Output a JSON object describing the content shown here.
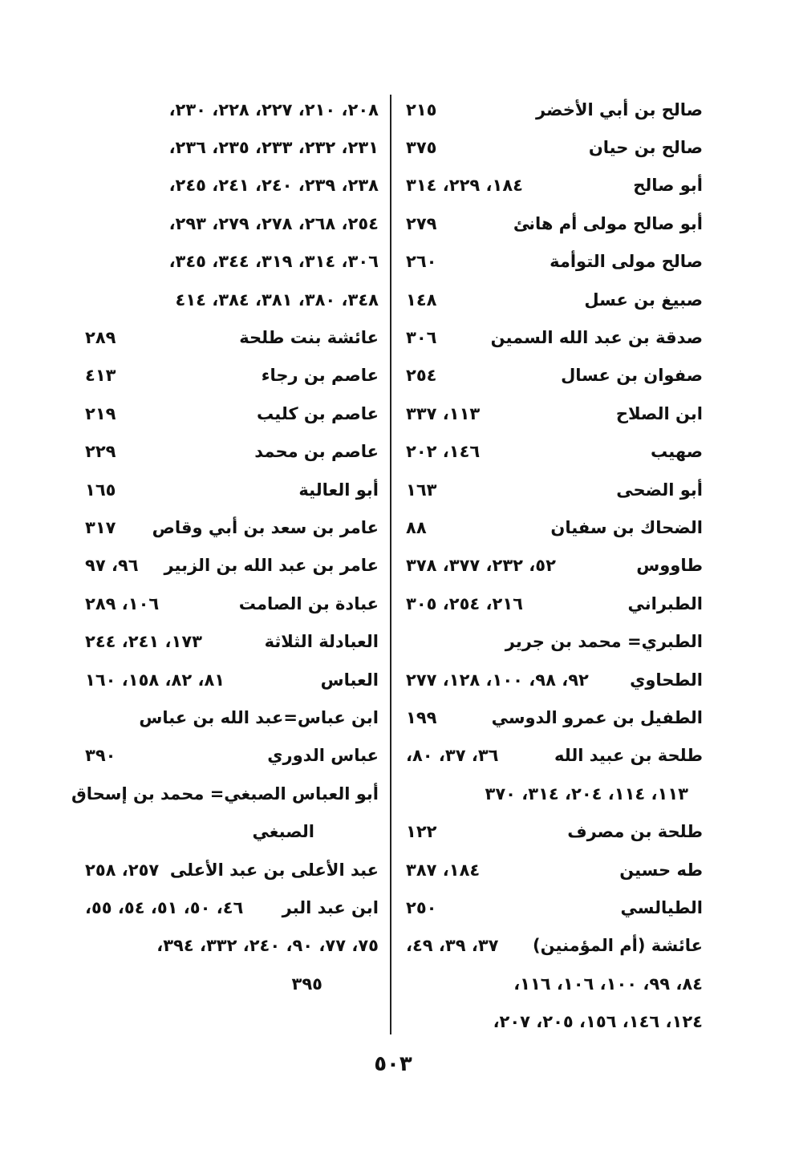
{
  "columns": [
    {
      "lines": [
        {
          "name": "صالح بن أبي الأخضر",
          "pages": "٢١٥"
        },
        {
          "name": "صالح بن حيان",
          "pages": "٣٧٥"
        },
        {
          "name": "أبو صالح",
          "pages": "١٨٤، ٢٢٩، ٣١٤"
        },
        {
          "name": "أبو صالح مولى أم هانئ",
          "pages": "٢٧٩"
        },
        {
          "name": "صالح مولى التوأمة",
          "pages": "٢٦٠"
        },
        {
          "name": "صبيغ بن عسل",
          "pages": "١٤٨"
        },
        {
          "name": "صدقة بن عبد الله السمين",
          "pages": "٣٠٦"
        },
        {
          "name": "صفوان بن عسال",
          "pages": "٢٥٤"
        },
        {
          "name": "ابن الصلاح",
          "pages": "١١٣، ٣٣٧"
        },
        {
          "name": "صهيب",
          "pages": "١٤٦، ٢٠٢"
        },
        {
          "name": "أبو الضحى",
          "pages": "١٦٣"
        },
        {
          "name": "الضحاك بن سفيان",
          "pages": "٨٨"
        },
        {
          "name": "طاووس",
          "pages": "٥٢، ٢٣٢، ٣٧٧، ٣٧٨"
        },
        {
          "name": "الطبراني",
          "pages": "٢١٦، ٢٥٤، ٣٠٥"
        },
        {
          "name": "الطبري= محمد بن جرير"
        },
        {
          "name": "الطحاوي",
          "pages": "٩٢، ٩٨، ١٠٠، ١٢٨، ٢٧٧"
        },
        {
          "name": "الطفيل بن عمرو الدوسي",
          "pages": "١٩٩"
        },
        {
          "name": "طلحة بن عبيد الله",
          "pages": "٣٦، ٣٧، ٨٠،"
        },
        {
          "pages": "١١٣، ١١٤، ٢٠٤، ٣١٤، ٣٧٠"
        },
        {
          "name": "طلحة بن مصرف",
          "pages": "١٢٢"
        },
        {
          "name": "طه حسين",
          "pages": "١٨٤، ٣٨٧"
        },
        {
          "name": "الطيالسي",
          "pages": "٢٥٠"
        },
        {
          "name": "عائشة (أم المؤمنين)",
          "pages": "٣٧، ٣٩، ٤٩،"
        },
        {
          "pages": "٨٤، ٩٩، ١٠٠، ١٠٦، ١١٦،"
        },
        {
          "pages": "١٢٤، ١٤٦، ١٥٦، ٢٠٥، ٢٠٧،"
        }
      ]
    },
    {
      "lines": [
        {
          "pages": "٢٠٨، ٢١٠، ٢٢٧، ٢٢٨، ٢٣٠،"
        },
        {
          "pages": "٢٣١، ٢٣٢، ٢٣٣، ٢٣٥، ٢٣٦،"
        },
        {
          "pages": "٢٣٨، ٢٣٩، ٢٤٠، ٢٤١، ٢٤٥،"
        },
        {
          "pages": "٢٥٤، ٢٦٨، ٢٧٨، ٢٧٩، ٢٩٣،"
        },
        {
          "pages": "٣٠٦، ٣١٤، ٣١٩، ٣٤٤، ٣٤٥،"
        },
        {
          "pages": "٣٤٨، ٣٨٠، ٣٨١، ٣٨٤، ٤١٤"
        },
        {
          "name": "عائشة بنت طلحة",
          "pages": "٢٨٩"
        },
        {
          "name": "عاصم بن رجاء",
          "pages": "٤١٣"
        },
        {
          "name": "عاصم بن كليب",
          "pages": "٢١٩"
        },
        {
          "name": "عاصم بن محمد",
          "pages": "٢٢٩"
        },
        {
          "name": "أبو العالية",
          "pages": "١٦٥"
        },
        {
          "name": "عامر بن سعد بن أبي وقاص",
          "pages": "٣١٧"
        },
        {
          "name": "عامر بن عبد الله بن الزبير",
          "pages": "٩٦، ٩٧"
        },
        {
          "name": "عبادة بن الصامت",
          "pages": "١٠٦، ٢٨٩"
        },
        {
          "name": "العبادلة الثلاثة",
          "pages": "١٧٣، ٢٤١، ٢٤٤"
        },
        {
          "name": "العباس",
          "pages": "٨١، ٨٢، ١٥٨، ١٦٠"
        },
        {
          "name": "ابن عباس=عبد الله بن عباس"
        },
        {
          "name": "عباس الدوري",
          "pages": "٣٩٠"
        },
        {
          "name": "أبو العباس الصبغي= محمد بن إسحاق"
        },
        {
          "name": "الصبغي"
        },
        {
          "name": "عبد الأعلى بن عبد الأعلى",
          "pages": "٢٥٧، ٢٥٨"
        },
        {
          "name": "ابن عبد البر",
          "pages": "٤٦، ٥٠، ٥١، ٥٤، ٥٥،"
        },
        {
          "pages": "٧٥، ٧٧، ٩٠، ٢٤٠، ٣٣٢، ٣٩٤،"
        },
        {
          "pages": "٣٩٥"
        }
      ]
    }
  ],
  "page_number": "٥٠٣"
}
